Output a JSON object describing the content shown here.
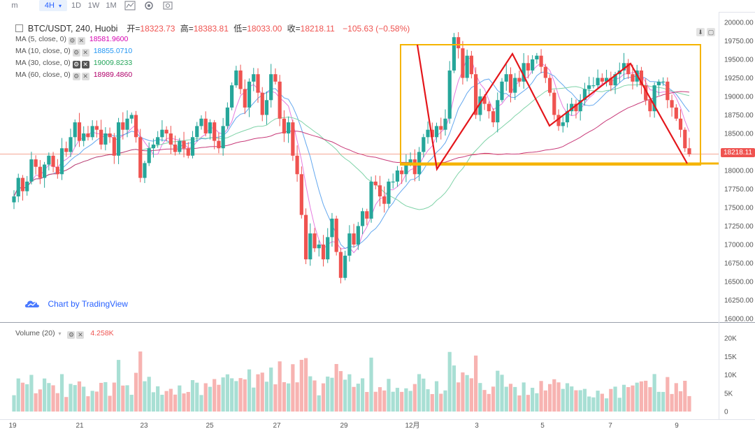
{
  "toolbar": {
    "items": [
      "m",
      "4H",
      "1D",
      "1W",
      "1M"
    ]
  },
  "header": {
    "symbol": "BTC/USDT, 240, Huobi",
    "open_label": "开=",
    "open": "18323.73",
    "high_label": "高=",
    "high": "18383.81",
    "low_label": "低=",
    "low": "18033.00",
    "close_label": "收=",
    "close": "18218.11",
    "change": "−105.63 (−0.58%)"
  },
  "ma": [
    {
      "label": "MA (5, close, 0)",
      "value": "18581.9600",
      "color": "#d500b0"
    },
    {
      "label": "MA (10, close, 0)",
      "value": "18855.0710",
      "color": "#2196f3"
    },
    {
      "label": "MA (30, close, 0)",
      "value": "19009.8233",
      "color": "#26a65b"
    },
    {
      "label": "MA (60, close, 0)",
      "value": "18989.4860",
      "color": "#b0006a"
    }
  ],
  "volume": {
    "label": "Volume (20)",
    "value": "4.258K"
  },
  "watermark": "Chart by TradingView",
  "colors": {
    "up": "#26a69a",
    "down": "#ef5350",
    "box": "#f5b400",
    "pattern": "#e4161b",
    "ma5": "#e67ce0",
    "ma10": "#64a8ef",
    "ma30": "#7fd3a8",
    "ma60": "#c83a79"
  },
  "chart_data": [
    {
      "type": "candlestick",
      "title": "BTC/USDT, 240, Huobi",
      "y_axis_ticks": [
        "20000.00",
        "19750.00",
        "19500.00",
        "19250.00",
        "19000.00",
        "18750.00",
        "18500.00",
        "18250.00",
        "18000.00",
        "17750.00",
        "17500.00",
        "17250.00",
        "17000.00",
        "16750.00",
        "16500.00",
        "16250.00",
        "16000.00"
      ],
      "ylim": [
        16000,
        20000
      ],
      "x_axis_ticks": [
        "19",
        "21",
        "23",
        "25",
        "27",
        "29",
        "12月",
        "3",
        "5",
        "7",
        "9"
      ],
      "last_price": "18218.11",
      "series": [
        {
          "name": "MA (5, close, 0)",
          "last": 18581.96
        },
        {
          "name": "MA (10, close, 0)",
          "last": 18855.071
        },
        {
          "name": "MA (30, close, 0)",
          "last": 19009.8233
        },
        {
          "name": "MA (60, close, 0)",
          "last": 18989.486
        }
      ],
      "closes": [
        17650,
        17900,
        17720,
        17850,
        18150,
        18050,
        17900,
        18080,
        18200,
        18050,
        17950,
        18300,
        18250,
        18450,
        18650,
        18400,
        18500,
        18450,
        18600,
        18550,
        18350,
        18500,
        18450,
        18200,
        18650,
        18550,
        18700,
        18750,
        18450,
        17900,
        18100,
        18300,
        18350,
        18450,
        18550,
        18500,
        18350,
        18250,
        18400,
        18300,
        18200,
        18450,
        18600,
        18700,
        18500,
        18650,
        18400,
        18300,
        18600,
        18850,
        19150,
        19350,
        19100,
        18850,
        19200,
        19300,
        19050,
        18750,
        18950,
        19300,
        19200,
        18700,
        18500,
        18650,
        18200,
        17950,
        17400,
        16800,
        17150,
        16950,
        17000,
        16800,
        17100,
        17350,
        16900,
        16550,
        16850,
        17150,
        17000,
        17250,
        17450,
        17350,
        17850,
        17800,
        17650,
        17550,
        17850,
        17850,
        18000,
        17950,
        18100,
        18150,
        17950,
        18250,
        18450,
        18550,
        18450,
        18600,
        18550,
        18700,
        19350,
        19800,
        19650,
        19250,
        19550,
        19300,
        18750,
        19000,
        18900,
        18800,
        18650,
        18950,
        19200,
        19300,
        19050,
        19250,
        19200,
        19450,
        19350,
        19500,
        19550,
        19400,
        19250,
        19050,
        18750,
        18600,
        18650,
        18800,
        18900,
        18800,
        18950,
        19100,
        19150,
        19150,
        19250,
        19200,
        19250,
        19150,
        19300,
        19350,
        19450,
        19300,
        19200,
        19350,
        19150,
        18950,
        18800,
        19150,
        19200,
        19200,
        18950,
        18850,
        18700,
        18550,
        18300,
        18218.11
      ],
      "volume_axis_ticks": [
        "20K",
        "15K",
        "10K",
        "5K",
        "0"
      ]
    }
  ]
}
